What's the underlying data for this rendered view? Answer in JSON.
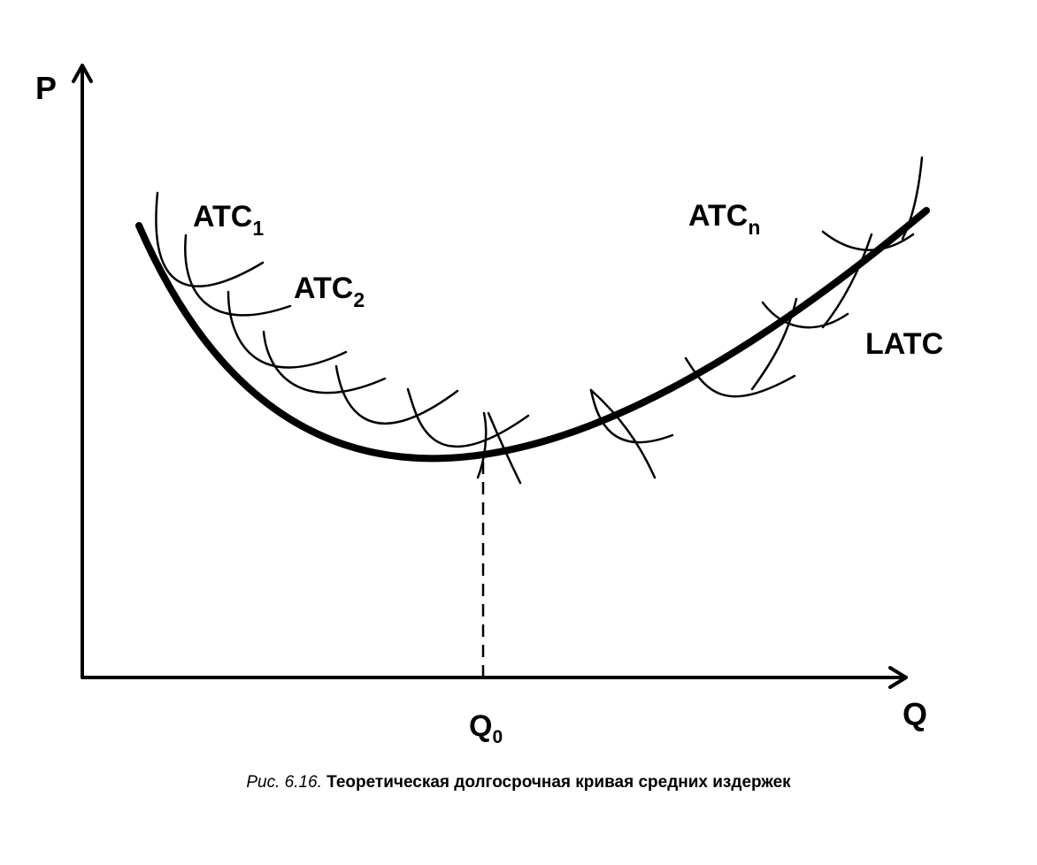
{
  "diagram": {
    "axes": {
      "y_label": "P",
      "x_label": "Q"
    },
    "curves": {
      "long_run": {
        "label": "LATC"
      },
      "short_run": [
        {
          "label": "ATC",
          "subscript": "1"
        },
        {
          "label": "ATC",
          "subscript": "2"
        },
        {
          "label": "ATC",
          "subscript": "n"
        }
      ],
      "short_run_count_drawn": 11
    },
    "minimum_point": {
      "label": "Q",
      "subscript": "0"
    },
    "colors": {
      "ink": "#000000",
      "background": "#ffffff"
    }
  },
  "caption": {
    "number": "Рис. 6.16.",
    "text": "Теоретическая долгосрочная кривая средних издержек"
  }
}
